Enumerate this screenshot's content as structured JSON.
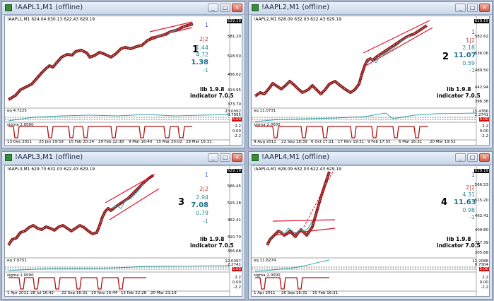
{
  "windows": [
    {
      "title": "!AAPL1,M1 (offline)",
      "header": "!AAPL1,M1  624.04 630.13 622.43 629.19",
      "number": "1",
      "lib": "lib 1.9.8",
      "indicator": "indicator 7.0.5",
      "price_badge": "629.19",
      "price_ticks": [
        "581.20",
        "518.50",
        "456.02",
        "414.95",
        "373.70"
      ],
      "stats": [
        "1",
        "2|2",
        "1.44",
        "4.72",
        "1.38",
        "-1"
      ],
      "eq_label": "eq 4.7225",
      "eq_right": [
        "23.0092",
        "0.7995"
      ],
      "red_badge": "5.00",
      "sigma_label": "sigma 2.0000",
      "sigma_ticks": [
        "2.2",
        "0.00",
        "-2.2"
      ],
      "dates": [
        "13 Dec 2011",
        "25 Jan 19:59",
        "15 Feb 20:24",
        "29 Feb 22:38",
        "9 Mar 16:40",
        "15 Mar 20:02",
        "28 Mar 16:31"
      ]
    },
    {
      "title": "!AAPL2,M1 (offline)",
      "header": "!AAPL2,M1  628.09 632.03 622.43 629.19",
      "number": "2",
      "lib": "lib 1.9.8",
      "indicator": "indicator 7.0.5",
      "price_badge": "629.19",
      "price_ticks": [
        "582.62",
        "536.06",
        "489.50",
        "442.94",
        "396.38"
      ],
      "stats": [
        "1",
        "1|2",
        "2.18",
        "11.07",
        "0.59",
        "-1"
      ],
      "eq_label": "eq 11.0731",
      "eq_right": [
        "15.4766",
        "2.2741"
      ],
      "red_badge": "5.00",
      "sigma_label": "sigma 2.0000",
      "sigma_ticks": [
        "2.2",
        "0.00",
        "-2.2"
      ],
      "dates": [
        "9 Aug 2011",
        "22 Sep 18:39",
        "6 Oct 17:21",
        "17 Nov 19:31",
        "9 Feb 17:55",
        "6 Mar 16:31",
        "20 Mar 19:52"
      ]
    },
    {
      "title": "!AAPL3,M1 (offline)",
      "header": "!AAPL3,M1  629.70 632.03 622.43 629.19",
      "number": "3",
      "lib": "lib 1.9.8",
      "indicator": "indicator 7.0.5",
      "price_badge": "629.19",
      "price_ticks": [
        "566.45",
        "515.28",
        "462.41",
        "410.70",
        "356.68"
      ],
      "stats": [
        "1",
        "2|2",
        "2.94",
        "7.08",
        "0.79",
        "-1"
      ],
      "eq_label": "eq 7.0751",
      "eq_right": [
        "12.0397",
        "2.2741"
      ],
      "red_badge": "5.00",
      "sigma_label": "sigma 2.0000",
      "sigma_ticks": [
        "2.2",
        "0.00",
        "-2.2"
      ],
      "dates": [
        "1 Apr 2011",
        "28 Jul 16:42",
        "22 Sep 16:31",
        "10 Nov 16:44",
        "15 Feb 22:28",
        "20 Mar 21:19"
      ]
    },
    {
      "title": "!AAPL4,M1 (offline)",
      "header": "!AAPL4,M1  628.09 632.03 622.43 629.19",
      "number": "4",
      "lib": "lib 1.9.8",
      "indicator": "indicator 7.0.5",
      "price_badge": "629.19",
      "price_ticks": [
        "566.53",
        "515.20",
        "462.41",
        "409.80",
        "357.39",
        "305.68"
      ],
      "stats": [
        "1",
        "2|2",
        "4.31",
        "11.63",
        "0.98",
        "-1"
      ],
      "eq_label": "eq 11.6274",
      "eq_right": [
        "12.2088",
        "0.7304"
      ],
      "red_badge": "5.00",
      "sigma_label": "sigma 2.0000",
      "sigma_ticks": [
        "2.2",
        "0.00",
        "-2.2"
      ],
      "dates": [
        "1 Apr 2011",
        "20 Sep 16:31",
        "15 Feb 16:31"
      ]
    }
  ],
  "window_buttons": {
    "minimize": "_",
    "maximize": "□",
    "close": "×"
  },
  "colors": {
    "price_line": "#8b1a1a",
    "channel": "#e0102a",
    "eq_line": "#2fa6a6",
    "sigma_line": "#b01010",
    "bg": "#abb7c8"
  }
}
